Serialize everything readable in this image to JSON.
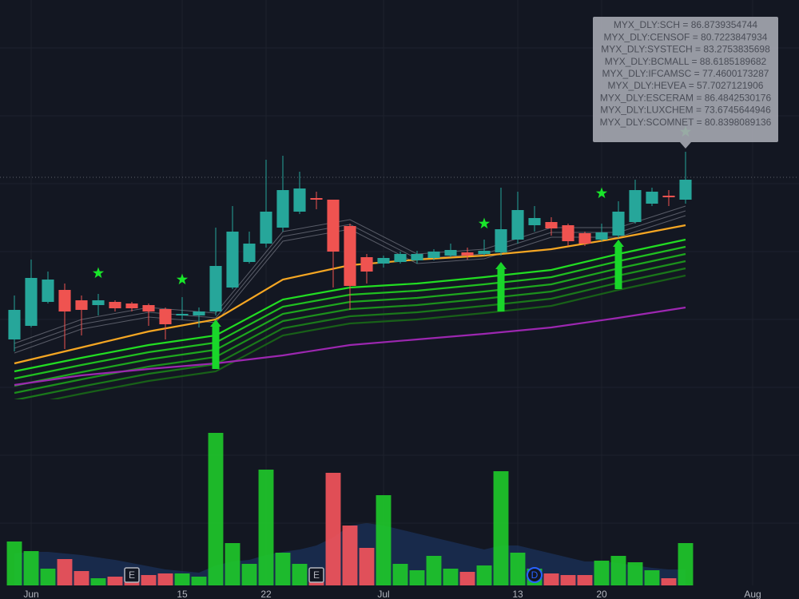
{
  "chart_data": {
    "type": "candlestick",
    "x": [
      0,
      1,
      2,
      3,
      4,
      5,
      6,
      7,
      8,
      9,
      10,
      11,
      12,
      13,
      14,
      15,
      16,
      17,
      18,
      19,
      20,
      21,
      22,
      23,
      24,
      25,
      26,
      27,
      28,
      29,
      30,
      31,
      32,
      33,
      34,
      35,
      36,
      37,
      38,
      39,
      40
    ],
    "open": [
      75,
      92,
      122,
      137,
      124,
      118,
      122,
      120,
      118,
      113,
      105,
      105,
      110,
      140,
      172,
      195,
      215,
      235,
      252,
      250,
      217,
      178,
      170,
      172,
      174,
      177,
      180,
      184,
      182,
      184,
      200,
      218,
      222,
      218,
      208,
      200,
      205,
      222,
      245,
      255,
      250
    ],
    "high": [
      130,
      175,
      160,
      145,
      130,
      132,
      124,
      122,
      120,
      115,
      128,
      115,
      215,
      242,
      210,
      300,
      305,
      285,
      260,
      250,
      220,
      182,
      180,
      185,
      186,
      188,
      195,
      190,
      200,
      265,
      260,
      242,
      228,
      220,
      210,
      220,
      248,
      275,
      265,
      262,
      310
    ],
    "low": [
      60,
      90,
      120,
      63,
      80,
      105,
      110,
      110,
      92,
      75,
      100,
      90,
      105,
      138,
      170,
      190,
      210,
      232,
      238,
      140,
      112,
      145,
      165,
      170,
      170,
      174,
      178,
      175,
      180,
      180,
      195,
      210,
      205,
      192,
      192,
      198,
      202,
      220,
      242,
      242,
      245
    ],
    "close": [
      112,
      152,
      150,
      110,
      112,
      124,
      114,
      114,
      110,
      94,
      107,
      110,
      167,
      210,
      195,
      235,
      262,
      264,
      250,
      185,
      142,
      160,
      177,
      182,
      182,
      185,
      187,
      180,
      186,
      213,
      237,
      227,
      214,
      198,
      195,
      209,
      235,
      262,
      260,
      253,
      275
    ],
    "up_color": "#26a69a",
    "down_color": "#ef5350",
    "xlim": [
      -0.857,
      46.762
    ],
    "ylim": [
      0,
      500
    ],
    "xticks": [
      {
        "value": 1,
        "label": "Jun"
      },
      {
        "value": 10,
        "label": "15"
      },
      {
        "value": 15,
        "label": "22"
      },
      {
        "value": 22,
        "label": "Jul"
      },
      {
        "value": 30,
        "label": "13"
      },
      {
        "value": 35,
        "label": "20"
      },
      {
        "value": 44,
        "label": "Aug"
      }
    ],
    "grid": true,
    "volume": {
      "values": [
        55,
        43,
        21,
        33,
        18,
        9,
        11,
        7,
        13,
        15,
        15,
        11,
        191,
        53,
        27,
        145,
        41,
        27,
        21,
        141,
        75,
        47,
        113,
        27,
        19,
        37,
        21,
        17,
        25,
        143,
        41,
        21,
        15,
        13,
        13,
        31,
        37,
        29,
        19,
        9,
        53
      ],
      "up_color": "#1ec72a",
      "down_color": "#f2545b",
      "ylim": [
        0,
        233
      ]
    },
    "volume_ma": {
      "color": "#1e3a6e",
      "values": [
        40,
        42,
        42,
        40,
        38,
        35,
        32,
        28,
        24,
        20,
        18,
        16,
        25,
        30,
        32,
        38,
        42,
        45,
        50,
        60,
        75,
        78,
        75,
        70,
        65,
        60,
        55,
        50,
        45,
        50,
        50,
        45,
        40,
        35,
        30,
        30,
        28,
        25,
        22,
        20,
        20
      ]
    },
    "moving_averages": [
      {
        "color": "#787b86",
        "x": [
          0,
          4,
          8,
          12,
          16,
          20,
          24,
          28,
          32,
          36,
          40
        ],
        "values": [
          58,
          88,
          103,
          96,
          198,
          213,
          170,
          176,
          203,
          203,
          230
        ]
      },
      {
        "color": "#787b86",
        "x": [
          0,
          4,
          8,
          12,
          16,
          20,
          24,
          28,
          32,
          36,
          40
        ],
        "values": [
          64,
          94,
          109,
          102,
          204,
          219,
          176,
          182,
          209,
          209,
          236
        ]
      },
      {
        "color": "#787b86",
        "x": [
          0,
          4,
          8,
          12,
          16,
          20,
          24,
          28,
          32,
          36,
          40
        ],
        "values": [
          70,
          100,
          115,
          108,
          210,
          225,
          182,
          188,
          215,
          215,
          242
        ]
      },
      {
        "color": "#186018",
        "x": [
          0,
          4,
          8,
          12,
          16,
          20,
          24,
          28,
          32,
          36,
          40
        ],
        "values": [
          -10,
          7,
          23,
          35,
          80,
          95,
          100,
          108,
          117,
          137,
          155
        ]
      },
      {
        "color": "#1a781a",
        "x": [
          0,
          4,
          8,
          12,
          16,
          20,
          24,
          28,
          32,
          36,
          40
        ],
        "values": [
          -1,
          16,
          32,
          44,
          89,
          104,
          109,
          117,
          126,
          146,
          164
        ]
      },
      {
        "color": "#1c901c",
        "x": [
          0,
          4,
          8,
          12,
          16,
          20,
          24,
          28,
          32,
          36,
          40
        ],
        "values": [
          8,
          25,
          41,
          53,
          98,
          113,
          118,
          126,
          135,
          155,
          173
        ]
      },
      {
        "color": "#1ea81e",
        "x": [
          0,
          4,
          8,
          12,
          16,
          20,
          24,
          28,
          32,
          36,
          40
        ],
        "values": [
          17,
          34,
          50,
          62,
          107,
          122,
          127,
          135,
          144,
          164,
          182
        ]
      },
      {
        "color": "#20c020",
        "x": [
          0,
          4,
          8,
          12,
          16,
          20,
          24,
          28,
          32,
          36,
          40
        ],
        "values": [
          26,
          43,
          59,
          71,
          116,
          131,
          136,
          144,
          153,
          173,
          191
        ]
      },
      {
        "color": "#22dd22",
        "x": [
          0,
          4,
          8,
          12,
          16,
          20,
          24,
          28,
          32,
          36,
          40
        ],
        "values": [
          35,
          52,
          68,
          80,
          125,
          140,
          145,
          153,
          162,
          182,
          200
        ]
      },
      {
        "color": "#f5a623",
        "x": [
          0,
          4,
          8,
          12,
          16,
          20,
          24,
          28,
          32,
          36,
          40
        ],
        "values": [
          45,
          65,
          85,
          100,
          150,
          168,
          175,
          180,
          188,
          202,
          218
        ]
      },
      {
        "color": "#9c27b0",
        "x": [
          0,
          4,
          8,
          12,
          16,
          20,
          24,
          28,
          32,
          36,
          40
        ],
        "values": [
          18,
          30,
          38,
          45,
          55,
          68,
          75,
          82,
          90,
          102,
          115
        ]
      }
    ],
    "buy_signals": {
      "color": "#19d62a",
      "x": [
        12,
        29,
        36
      ],
      "values": [
        100,
        172,
        200
      ]
    },
    "stars": {
      "color": "#19e62a",
      "x": [
        5,
        10,
        28,
        35,
        40
      ],
      "values": [
        158,
        150,
        220,
        258,
        335
      ]
    },
    "events": [
      {
        "x": 7,
        "label": "E",
        "color": "#b2b5be"
      },
      {
        "x": 18,
        "label": "E",
        "color": "#b2b5be"
      },
      {
        "x": 31,
        "label": "D",
        "color": "#2962ff"
      }
    ],
    "price_line": 278,
    "tooltip": {
      "x": 40,
      "lines": [
        "MYX_DLY:SCH  =  86.8739354744",
        "MYX_DLY:CENSOF  =  80.7223847934",
        "MYX_DLY:SYSTECH  =  83.2753835698",
        "MYX_DLY:BCMALL  =  88.6185189682",
        "MYX_DLY:IFCAMSC  =  77.4600173287",
        "MYX_DLY:HEVEA  =  57.7027121906",
        "MYX_DLY:ESCERAM  =  86.4842530176",
        "MYX_DLY:LUXCHEM  =  73.6745644946",
        "MYX_DLY:SCOMNET  =  80.8398089136"
      ]
    }
  }
}
